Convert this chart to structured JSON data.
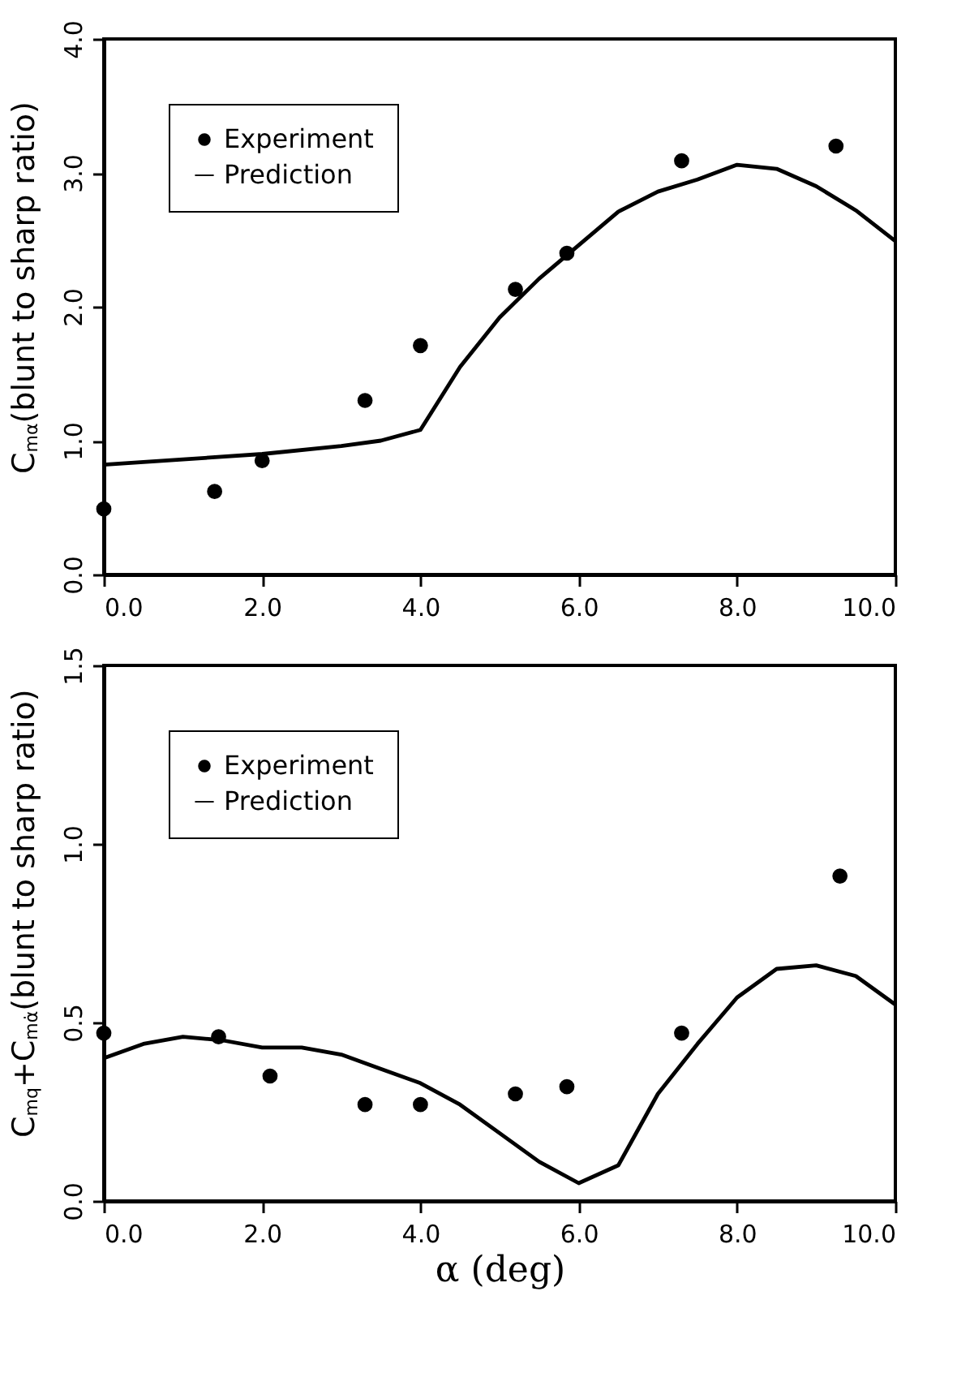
{
  "chart_data": [
    {
      "type": "scatter",
      "ylabel": "C$_{mα}$(blunt to sharp ratio)",
      "xlim": [
        0,
        10
      ],
      "ylim": [
        0,
        4
      ],
      "xticks": [
        {
          "value": 0,
          "label": "0.0"
        },
        {
          "value": 2,
          "label": "2.0"
        },
        {
          "value": 4,
          "label": "4.0"
        },
        {
          "value": 6,
          "label": "6.0"
        },
        {
          "value": 8,
          "label": "8.0"
        },
        {
          "value": 10,
          "label": "10.0"
        }
      ],
      "yticks": [
        {
          "value": 0,
          "label": "0.0"
        },
        {
          "value": 1,
          "label": "1.0"
        },
        {
          "value": 2,
          "label": "2.0"
        },
        {
          "value": 3,
          "label": "3.0"
        },
        {
          "value": 4,
          "label": "4.0"
        }
      ],
      "legend": "top left",
      "series": [
        {
          "name": "Experiment",
          "marker": "circle",
          "color": "#000000",
          "x": [
            0,
            1.4,
            2.0,
            3.3,
            4.0,
            5.2,
            5.85,
            7.3,
            9.25
          ],
          "values": [
            0.49,
            0.62,
            0.85,
            1.3,
            1.71,
            2.13,
            2.4,
            3.09,
            3.2
          ]
        },
        {
          "name": "Prediction",
          "type": "line",
          "color": "#000000",
          "x": [
            0,
            1,
            2,
            3,
            3.5,
            4,
            4.5,
            5,
            5.5,
            6,
            6.5,
            7,
            7.5,
            8,
            8.5,
            9,
            9.5,
            10
          ],
          "values": [
            0.82,
            0.86,
            0.9,
            0.96,
            1.0,
            1.08,
            1.55,
            1.92,
            2.21,
            2.46,
            2.71,
            2.86,
            2.95,
            3.06,
            3.03,
            2.9,
            2.72,
            2.49
          ]
        }
      ]
    },
    {
      "type": "scatter",
      "ylabel": "C$_{mq}$+C$_{mα̇}$(blunt to sharp ratio)",
      "xlabel": "α (deg)",
      "xlim": [
        0,
        10
      ],
      "ylim": [
        0,
        1.5
      ],
      "xticks": [
        {
          "value": 0,
          "label": "0.0"
        },
        {
          "value": 2,
          "label": "2.0"
        },
        {
          "value": 4,
          "label": "4.0"
        },
        {
          "value": 6,
          "label": "6.0"
        },
        {
          "value": 8,
          "label": "8.0"
        },
        {
          "value": 10,
          "label": "10.0"
        }
      ],
      "yticks": [
        {
          "value": 0,
          "label": "0.0"
        },
        {
          "value": 0.5,
          "label": "0.5"
        },
        {
          "value": 1,
          "label": "1.0"
        },
        {
          "value": 1.5,
          "label": "1.5"
        }
      ],
      "legend": "top left",
      "series": [
        {
          "name": "Experiment",
          "marker": "circle",
          "color": "#000000",
          "x": [
            0,
            1.45,
            2.1,
            3.3,
            4.0,
            5.2,
            5.85,
            7.3,
            9.3
          ],
          "values": [
            0.47,
            0.46,
            0.35,
            0.27,
            0.27,
            0.3,
            0.32,
            0.47,
            0.91
          ]
        },
        {
          "name": "Prediction",
          "type": "line",
          "color": "#000000",
          "x": [
            0,
            0.5,
            1,
            1.5,
            2,
            2.5,
            3,
            3.5,
            4,
            4.5,
            5,
            5.5,
            6,
            6.5,
            7,
            7.5,
            8,
            8.5,
            9,
            9.5,
            10
          ],
          "values": [
            0.4,
            0.44,
            0.46,
            0.45,
            0.43,
            0.43,
            0.41,
            0.37,
            0.33,
            0.27,
            0.19,
            0.11,
            0.05,
            0.1,
            0.3,
            0.44,
            0.57,
            0.65,
            0.66,
            0.63,
            0.55
          ]
        }
      ]
    }
  ]
}
